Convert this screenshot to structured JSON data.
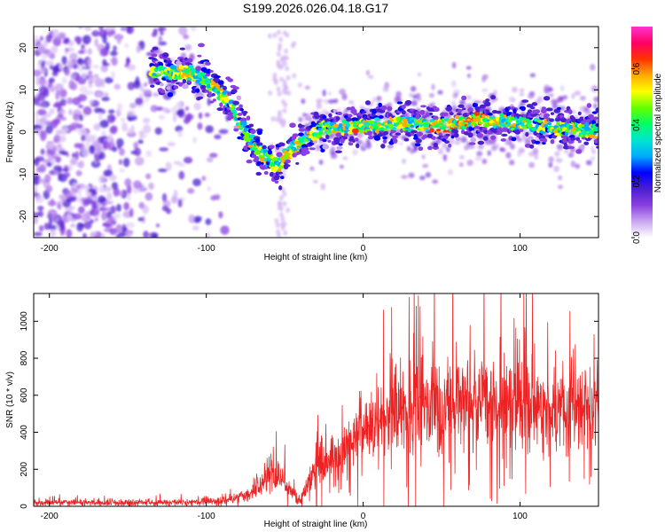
{
  "title": "S199.2026.026.04.18.G17",
  "chart_data": [
    {
      "type": "heatmap",
      "xlabel": "Height of straight line (km)",
      "ylabel": "Frequency (Hz)",
      "xlim": [
        -210,
        150
      ],
      "ylim": [
        -25,
        25
      ],
      "xticks": [
        -200,
        -100,
        0,
        100
      ],
      "yticks": [
        -20,
        -10,
        0,
        10,
        20
      ],
      "colorbar": {
        "label": "Normalized spectral amplitude",
        "range": [
          0.0,
          0.75
        ],
        "ticks": [
          0.0,
          0.2,
          0.4,
          0.6
        ],
        "colors": [
          "#ffffff",
          "#c9a6f0",
          "#8a3fe0",
          "#4a1fd0",
          "#0000ff",
          "#00aaff",
          "#00e5d0",
          "#00ff66",
          "#66ff00",
          "#ffff00",
          "#ffaa00",
          "#ff3300",
          "#ff0066",
          "#ff33cc"
        ]
      },
      "trace": [
        {
          "x": -135,
          "f": 14
        },
        {
          "x": -110,
          "f": 14
        },
        {
          "x": -95,
          "f": 11
        },
        {
          "x": -85,
          "f": 7
        },
        {
          "x": -78,
          "f": 2
        },
        {
          "x": -70,
          "f": -3
        },
        {
          "x": -62,
          "f": -6
        },
        {
          "x": -55,
          "f": -8
        },
        {
          "x": -45,
          "f": -4
        },
        {
          "x": -35,
          "f": -1
        },
        {
          "x": -25,
          "f": 1
        },
        {
          "x": -15,
          "f": 1
        },
        {
          "x": 0,
          "f": 1.5
        },
        {
          "x": 25,
          "f": 2
        },
        {
          "x": 50,
          "f": 1.5
        },
        {
          "x": 75,
          "f": 3
        },
        {
          "x": 100,
          "f": 2
        },
        {
          "x": 125,
          "f": 1
        },
        {
          "x": 150,
          "f": 0
        }
      ]
    },
    {
      "type": "line",
      "xlabel": "Height of straight line (km)",
      "ylabel": "SNR (10 * v/v)",
      "xlim": [
        -210,
        150
      ],
      "ylim": [
        0,
        1150
      ],
      "xticks": [
        -200,
        -100,
        0,
        100
      ],
      "yticks": [
        0,
        200,
        400,
        600,
        800,
        1000
      ],
      "color": "#ee2222",
      "envelope": [
        {
          "x": -210,
          "mean": 20,
          "spread": 15
        },
        {
          "x": -110,
          "mean": 22,
          "spread": 15
        },
        {
          "x": -85,
          "mean": 35,
          "spread": 20
        },
        {
          "x": -70,
          "mean": 80,
          "spread": 40
        },
        {
          "x": -58,
          "mean": 200,
          "spread": 90
        },
        {
          "x": -50,
          "mean": 120,
          "spread": 60
        },
        {
          "x": -40,
          "mean": 30,
          "spread": 20
        },
        {
          "x": -30,
          "mean": 220,
          "spread": 120
        },
        {
          "x": -15,
          "mean": 290,
          "spread": 130
        },
        {
          "x": 0,
          "mean": 400,
          "spread": 170
        },
        {
          "x": 20,
          "mean": 530,
          "spread": 220
        },
        {
          "x": 50,
          "mean": 560,
          "spread": 230
        },
        {
          "x": 100,
          "mean": 560,
          "spread": 230
        },
        {
          "x": 150,
          "mean": 520,
          "spread": 200
        }
      ]
    }
  ]
}
